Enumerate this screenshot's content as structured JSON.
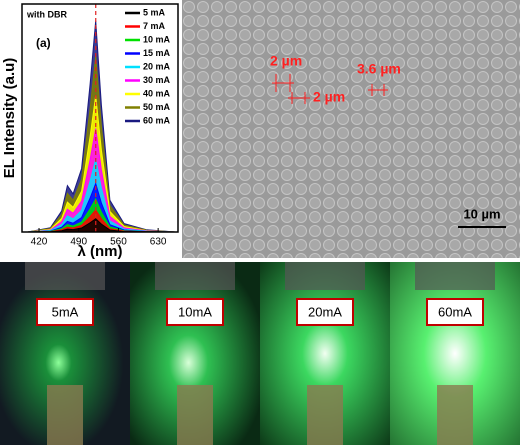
{
  "chart_data": {
    "type": "area",
    "panel_label": "(a)",
    "annotation": "with DBR",
    "x_label": "λ (nm)",
    "y_label": "EL Intensity (a.u)",
    "x": [
      400,
      440,
      460,
      470,
      480,
      495,
      510,
      520,
      530,
      545,
      570,
      610,
      660
    ],
    "xlim": [
      390,
      665
    ],
    "xticks": [
      420,
      490,
      560,
      630
    ],
    "ylim": [
      0,
      1
    ],
    "vline": 520,
    "vline_color": "#e02020",
    "series": [
      {
        "name": "5 mA",
        "color": "#000000",
        "values": [
          0,
          0.001,
          0.006,
          0.013,
          0.011,
          0.018,
          0.042,
          0.06,
          0.036,
          0.009,
          0.002,
          0.001,
          0
        ]
      },
      {
        "name": "7 mA",
        "color": "#ff0000",
        "values": [
          0,
          0.002,
          0.01,
          0.022,
          0.018,
          0.03,
          0.07,
          0.1,
          0.06,
          0.015,
          0.004,
          0.001,
          0
        ]
      },
      {
        "name": "10 mA",
        "color": "#00e000",
        "values": [
          0,
          0.003,
          0.015,
          0.033,
          0.027,
          0.045,
          0.105,
          0.15,
          0.09,
          0.023,
          0.006,
          0.002,
          0
        ]
      },
      {
        "name": "15 mA",
        "color": "#0000ff",
        "values": [
          0,
          0.004,
          0.022,
          0.048,
          0.04,
          0.066,
          0.154,
          0.22,
          0.132,
          0.033,
          0.009,
          0.002,
          0
        ]
      },
      {
        "name": "20 mA",
        "color": "#00e0ff",
        "values": [
          0,
          0.007,
          0.033,
          0.073,
          0.059,
          0.099,
          0.231,
          0.33,
          0.198,
          0.05,
          0.013,
          0.003,
          0
        ]
      },
      {
        "name": "30 mA",
        "color": "#ff00ff",
        "values": [
          0,
          0.009,
          0.047,
          0.103,
          0.085,
          0.141,
          0.329,
          0.47,
          0.282,
          0.071,
          0.019,
          0.005,
          0
        ]
      },
      {
        "name": "40 mA",
        "color": "#ffff00",
        "values": [
          0,
          0.012,
          0.062,
          0.136,
          0.112,
          0.186,
          0.434,
          0.62,
          0.372,
          0.093,
          0.025,
          0.006,
          0
        ]
      },
      {
        "name": "50 mA",
        "color": "#808000",
        "values": [
          0,
          0.016,
          0.08,
          0.176,
          0.144,
          0.24,
          0.56,
          0.8,
          0.48,
          0.12,
          0.032,
          0.008,
          0
        ]
      },
      {
        "name": "60 mA",
        "color": "#1a1a80",
        "values": [
          0,
          0.019,
          0.096,
          0.211,
          0.173,
          0.288,
          0.672,
          0.96,
          0.576,
          0.144,
          0.038,
          0.01,
          0
        ]
      }
    ]
  },
  "sem": {
    "pitch_labels": [
      "2 µm",
      "2 µm",
      "3.6 µm"
    ],
    "scale_bar": "10 µm"
  },
  "photos": {
    "labels": [
      "5mA",
      "10mA",
      "20mA",
      "60mA"
    ]
  }
}
